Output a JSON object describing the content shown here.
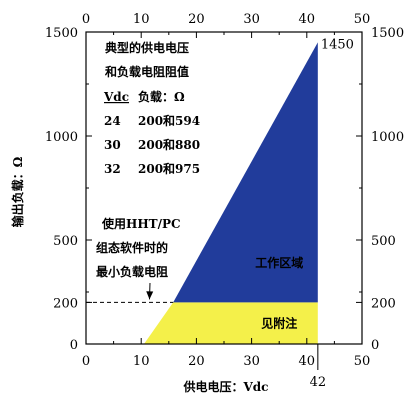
{
  "chart_data": {
    "type": "area",
    "title": "",
    "xlabel": "供电电压：Vdc",
    "ylabel": "输出负载：Ω",
    "xlim": [
      0,
      50
    ],
    "ylim": [
      0,
      1500
    ],
    "x_ticks": [
      "0",
      "10",
      "20",
      "30",
      "40",
      "50"
    ],
    "y_ticks": [
      "0",
      "500",
      "1000",
      "1500"
    ],
    "y_extra_tick": "200",
    "grid": false,
    "regions": [
      {
        "name": "工作区域",
        "color": "#213c9b",
        "points": [
          [
            15.8,
            200
          ],
          [
            42,
            1450
          ],
          [
            42,
            200
          ]
        ]
      },
      {
        "name": "见附注",
        "color": "#f4f04a",
        "points": [
          [
            10.5,
            0
          ],
          [
            15.8,
            200
          ],
          [
            42,
            200
          ],
          [
            42,
            0
          ]
        ]
      }
    ],
    "reference_line": {
      "y": 200,
      "x_from": 0,
      "x_to": 15.8,
      "style": "dashed"
    },
    "annotations": {
      "peak_label": "1450",
      "x_marker_label": "42",
      "x_marker": 42
    },
    "table": {
      "title_line1": "典型的供电电压",
      "title_line2": "和负载电阻阻值",
      "header": [
        "Vdc",
        "负载：Ω"
      ],
      "rows": [
        [
          "24",
          "200和594"
        ],
        [
          "30",
          "200和880"
        ],
        [
          "32",
          "200和975"
        ]
      ]
    },
    "min_load_note": [
      "使用HHT/PC",
      "组态软件时的",
      "最小负载电阻"
    ]
  }
}
